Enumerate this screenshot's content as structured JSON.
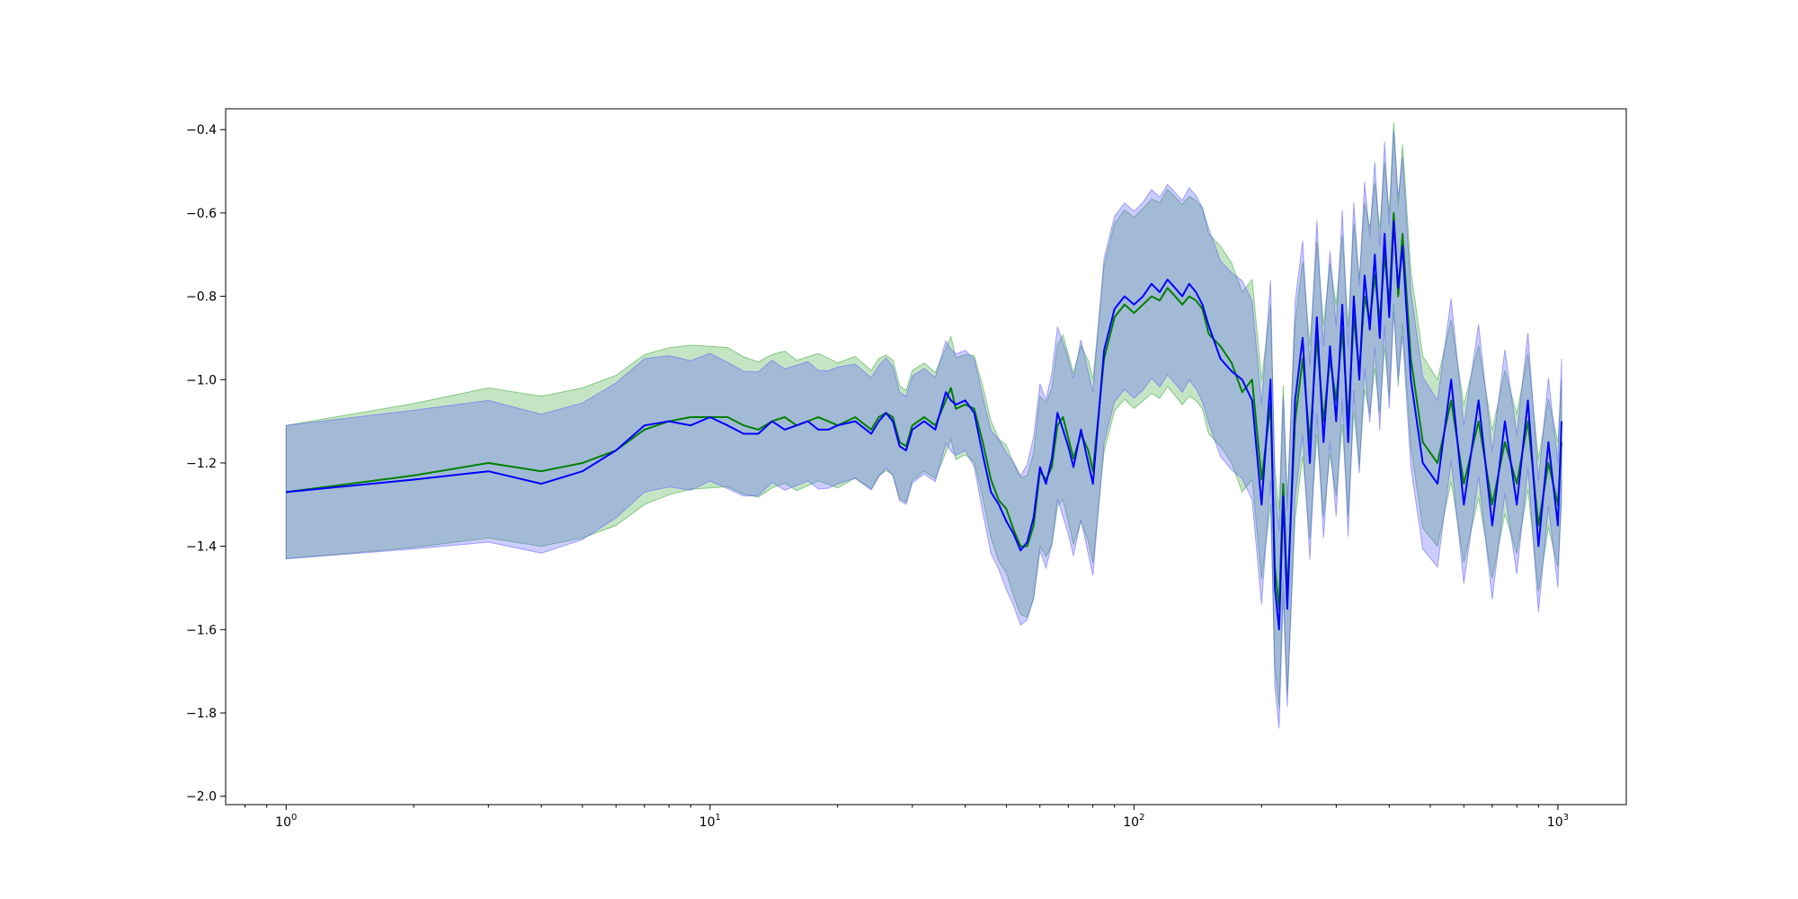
{
  "chart_data": {
    "type": "line",
    "title": "",
    "xlabel": "",
    "ylabel": "",
    "x_scale": "log",
    "xlim": [
      0.72,
      1450
    ],
    "ylim": [
      -2.02,
      -0.35
    ],
    "grid": false,
    "legend": "none",
    "x_ticks": [
      {
        "value": 1,
        "base": "10",
        "exp": "0"
      },
      {
        "value": 10,
        "base": "10",
        "exp": "1"
      },
      {
        "value": 100,
        "base": "10",
        "exp": "2"
      },
      {
        "value": 1000,
        "base": "10",
        "exp": "3"
      }
    ],
    "y_ticks": [
      {
        "value": -2.0,
        "label": "−2.0"
      },
      {
        "value": -1.8,
        "label": "−1.8"
      },
      {
        "value": -1.6,
        "label": "−1.6"
      },
      {
        "value": -1.4,
        "label": "−1.4"
      },
      {
        "value": -1.2,
        "label": "−1.2"
      },
      {
        "value": -1.0,
        "label": "−1.0"
      },
      {
        "value": -0.8,
        "label": "−0.8"
      },
      {
        "value": -0.6,
        "label": "−0.6"
      },
      {
        "value": -0.4,
        "label": "−0.4"
      }
    ],
    "series": [
      {
        "color": "#008000",
        "band_color": "#2ca02c",
        "band_half_width": [
          [
            1,
            0.16
          ],
          [
            3,
            0.18
          ],
          [
            7,
            0.18
          ],
          [
            20,
            0.15
          ],
          [
            40,
            0.12
          ],
          [
            60,
            0.18
          ],
          [
            80,
            0.22
          ],
          [
            130,
            0.24
          ],
          [
            200,
            0.24
          ],
          [
            400,
            0.22
          ],
          [
            1000,
            0.15
          ]
        ],
        "x": [
          1,
          2,
          3,
          4,
          5,
          6,
          7,
          8,
          9,
          10,
          11,
          12,
          13,
          14,
          15,
          16,
          17,
          18,
          19,
          20,
          22,
          24,
          25,
          26,
          27,
          28,
          29,
          30,
          32,
          34,
          36,
          37,
          38,
          40,
          42,
          44,
          46,
          48,
          50,
          52,
          54,
          56,
          58,
          60,
          62,
          64,
          66,
          68,
          70,
          72,
          75,
          78,
          80,
          85,
          90,
          95,
          100,
          105,
          110,
          115,
          120,
          125,
          130,
          135,
          140,
          145,
          150,
          160,
          170,
          180,
          190,
          200,
          210,
          215,
          220,
          225,
          230,
          240,
          250,
          260,
          270,
          280,
          290,
          300,
          310,
          320,
          330,
          340,
          350,
          360,
          370,
          380,
          390,
          400,
          410,
          420,
          430,
          450,
          480,
          520,
          560,
          600,
          650,
          700,
          750,
          800,
          850,
          900,
          950,
          1000,
          1020
        ],
        "y": [
          -1.27,
          -1.23,
          -1.2,
          -1.22,
          -1.2,
          -1.17,
          -1.12,
          -1.1,
          -1.09,
          -1.09,
          -1.09,
          -1.11,
          -1.12,
          -1.1,
          -1.09,
          -1.11,
          -1.1,
          -1.09,
          -1.1,
          -1.11,
          -1.09,
          -1.12,
          -1.09,
          -1.08,
          -1.09,
          -1.15,
          -1.16,
          -1.11,
          -1.09,
          -1.11,
          -1.05,
          -1.02,
          -1.07,
          -1.06,
          -1.07,
          -1.15,
          -1.24,
          -1.29,
          -1.31,
          -1.36,
          -1.4,
          -1.4,
          -1.35,
          -1.22,
          -1.24,
          -1.21,
          -1.11,
          -1.09,
          -1.14,
          -1.19,
          -1.13,
          -1.17,
          -1.22,
          -0.95,
          -0.85,
          -0.82,
          -0.84,
          -0.82,
          -0.8,
          -0.81,
          -0.78,
          -0.8,
          -0.82,
          -0.8,
          -0.81,
          -0.83,
          -0.89,
          -0.92,
          -0.96,
          -1.03,
          -1.0,
          -1.24,
          -1.06,
          -1.45,
          -1.55,
          -1.25,
          -1.52,
          -1.1,
          -0.95,
          -1.15,
          -0.9,
          -1.1,
          -0.95,
          -1.05,
          -0.88,
          -1.1,
          -0.85,
          -0.98,
          -0.8,
          -0.86,
          -0.75,
          -0.86,
          -0.7,
          -0.82,
          -0.6,
          -0.8,
          -0.65,
          -0.95,
          -1.15,
          -1.2,
          -1.05,
          -1.25,
          -1.1,
          -1.3,
          -1.15,
          -1.25,
          -1.1,
          -1.35,
          -1.2,
          -1.3,
          -1.15
        ]
      },
      {
        "color": "#0000ff",
        "band_color": "#5555ff",
        "band_half_width": [
          [
            1,
            0.16
          ],
          [
            3,
            0.17
          ],
          [
            7,
            0.16
          ],
          [
            20,
            0.14
          ],
          [
            40,
            0.12
          ],
          [
            60,
            0.2
          ],
          [
            80,
            0.22
          ],
          [
            130,
            0.23
          ],
          [
            200,
            0.24
          ],
          [
            400,
            0.22
          ],
          [
            1000,
            0.15
          ]
        ],
        "x": [
          1,
          2,
          3,
          4,
          5,
          6,
          7,
          8,
          9,
          10,
          11,
          12,
          13,
          14,
          15,
          16,
          17,
          18,
          19,
          20,
          22,
          24,
          25,
          26,
          27,
          28,
          29,
          30,
          32,
          34,
          36,
          37,
          38,
          40,
          42,
          44,
          46,
          48,
          50,
          52,
          54,
          56,
          58,
          60,
          62,
          64,
          66,
          68,
          70,
          72,
          75,
          78,
          80,
          85,
          90,
          95,
          100,
          105,
          110,
          115,
          120,
          125,
          130,
          135,
          140,
          145,
          150,
          160,
          170,
          180,
          190,
          200,
          210,
          215,
          220,
          225,
          230,
          240,
          250,
          260,
          270,
          280,
          290,
          300,
          310,
          320,
          330,
          340,
          350,
          360,
          370,
          380,
          390,
          400,
          410,
          420,
          430,
          450,
          480,
          520,
          560,
          600,
          650,
          700,
          750,
          800,
          850,
          900,
          950,
          1000,
          1020
        ],
        "y": [
          -1.27,
          -1.24,
          -1.22,
          -1.25,
          -1.22,
          -1.17,
          -1.11,
          -1.1,
          -1.11,
          -1.09,
          -1.11,
          -1.13,
          -1.13,
          -1.1,
          -1.12,
          -1.11,
          -1.1,
          -1.12,
          -1.12,
          -1.11,
          -1.1,
          -1.13,
          -1.1,
          -1.08,
          -1.1,
          -1.16,
          -1.17,
          -1.12,
          -1.1,
          -1.12,
          -1.03,
          -1.05,
          -1.06,
          -1.05,
          -1.08,
          -1.18,
          -1.27,
          -1.3,
          -1.34,
          -1.37,
          -1.41,
          -1.39,
          -1.33,
          -1.21,
          -1.25,
          -1.19,
          -1.08,
          -1.12,
          -1.16,
          -1.21,
          -1.12,
          -1.2,
          -1.25,
          -0.93,
          -0.83,
          -0.8,
          -0.82,
          -0.8,
          -0.77,
          -0.79,
          -0.76,
          -0.78,
          -0.8,
          -0.77,
          -0.79,
          -0.82,
          -0.87,
          -0.95,
          -0.98,
          -1.0,
          -1.05,
          -1.3,
          -1.0,
          -1.5,
          -1.6,
          -1.28,
          -1.55,
          -1.05,
          -0.9,
          -1.2,
          -0.85,
          -1.15,
          -0.92,
          -1.1,
          -0.82,
          -1.15,
          -0.8,
          -1.0,
          -0.75,
          -0.88,
          -0.7,
          -0.9,
          -0.65,
          -0.85,
          -0.62,
          -0.78,
          -0.68,
          -1.0,
          -1.2,
          -1.25,
          -1.0,
          -1.3,
          -1.05,
          -1.35,
          -1.1,
          -1.3,
          -1.05,
          -1.4,
          -1.15,
          -1.35,
          -1.1
        ]
      }
    ]
  }
}
